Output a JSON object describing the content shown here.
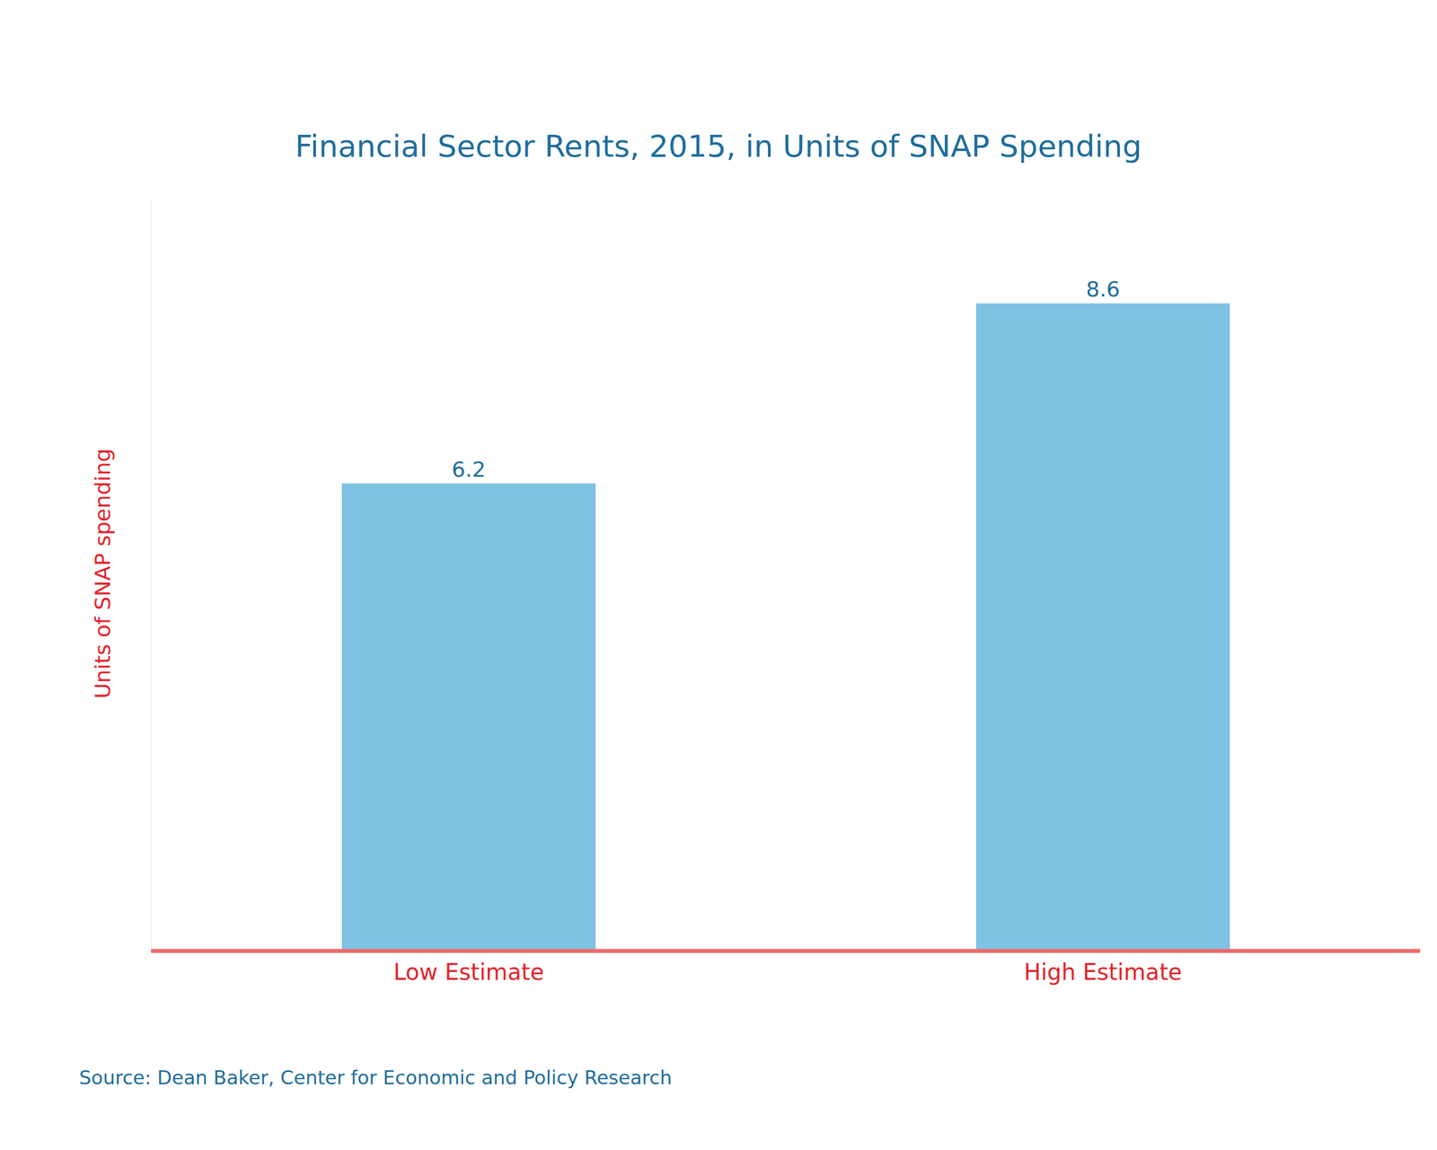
{
  "chart_data": {
    "type": "bar",
    "title": "Financial Sector Rents, 2015, in Units of SNAP Spending",
    "y_label": "Units of SNAP spending",
    "categories": [
      "Low Estimate",
      "High Estimate"
    ],
    "values": [
      6.2,
      8.6
    ],
    "color": "#7fc2e3",
    "ylim": [
      0,
      10
    ],
    "tick_labels": "x",
    "grid": false,
    "data_labels": true,
    "source": "Source: Dean Baker, Center for Economic and Policy Research"
  }
}
